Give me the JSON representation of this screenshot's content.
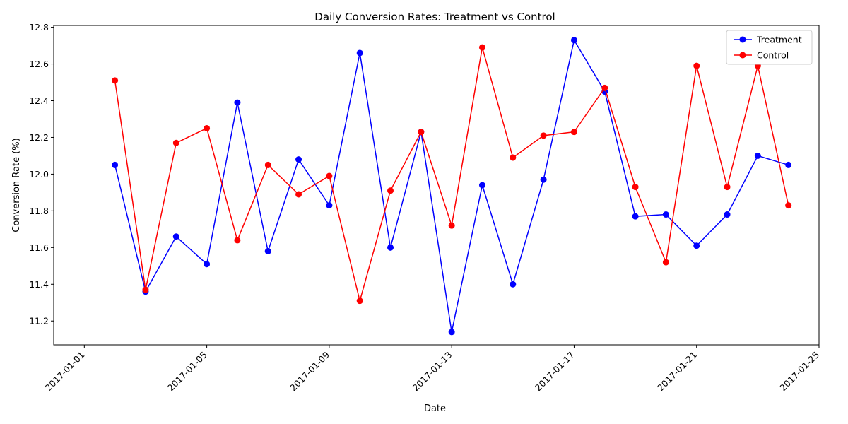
{
  "chart_data": {
    "type": "line",
    "title": "Daily Conversion Rates: Treatment vs Control",
    "xlabel": "Date",
    "ylabel": "Conversion Rate (%)",
    "x": [
      "2017-01-02",
      "2017-01-03",
      "2017-01-04",
      "2017-01-05",
      "2017-01-06",
      "2017-01-07",
      "2017-01-08",
      "2017-01-09",
      "2017-01-10",
      "2017-01-11",
      "2017-01-12",
      "2017-01-13",
      "2017-01-14",
      "2017-01-15",
      "2017-01-16",
      "2017-01-17",
      "2017-01-18",
      "2017-01-19",
      "2017-01-20",
      "2017-01-21",
      "2017-01-22",
      "2017-01-23",
      "2017-01-24"
    ],
    "x_ticks": [
      "2017-01-01",
      "2017-01-05",
      "2017-01-09",
      "2017-01-13",
      "2017-01-17",
      "2017-01-21",
      "2017-01-25"
    ],
    "xlim": [
      "2016-12-31",
      "2017-01-25"
    ],
    "y_ticks": [
      "11.2",
      "11.4",
      "11.6",
      "11.8",
      "12.0",
      "12.2",
      "12.4",
      "12.6",
      "12.8"
    ],
    "ylim": [
      11.07,
      12.81
    ],
    "grid": false,
    "legend_position": "top-right",
    "series": [
      {
        "name": "Treatment",
        "color": "#0000ff",
        "values": [
          12.05,
          11.36,
          11.66,
          11.51,
          12.39,
          11.58,
          12.08,
          11.83,
          12.66,
          11.6,
          12.23,
          11.14,
          11.94,
          11.4,
          11.97,
          12.73,
          12.45,
          11.77,
          11.78,
          11.61,
          11.78,
          12.1,
          12.05
        ]
      },
      {
        "name": "Control",
        "color": "#ff0000",
        "values": [
          12.51,
          11.37,
          12.17,
          12.25,
          11.64,
          12.05,
          11.89,
          11.99,
          11.31,
          11.91,
          12.23,
          11.72,
          12.69,
          12.09,
          12.21,
          12.23,
          12.47,
          11.93,
          11.52,
          12.59,
          11.93,
          12.59,
          11.83
        ]
      }
    ]
  }
}
